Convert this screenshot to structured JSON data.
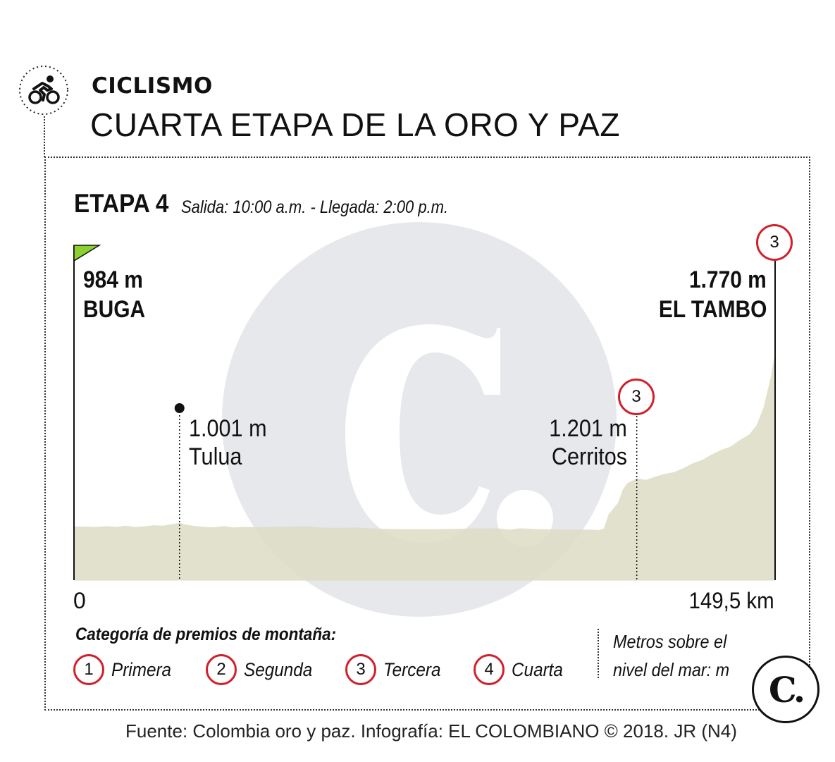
{
  "header": {
    "section": "CICLISMO",
    "headline": "CUARTA ETAPA DE LA ORO Y PAZ",
    "section_icon": "cyclist-icon"
  },
  "stage": {
    "title": "ETAPA 4",
    "times": "Salida: 10:00 a.m. - Llegada: 2:00 p.m."
  },
  "chart_data": {
    "type": "area",
    "xlabel": "",
    "ylabel": "",
    "x_range_km": [
      0,
      149.5
    ],
    "x_ticks": [
      "0",
      "149,5 km"
    ],
    "fill_color": "#dcdcc6",
    "profile": [
      {
        "x": 0,
        "y": 984
      },
      {
        "x": 3,
        "y": 983
      },
      {
        "x": 5,
        "y": 982
      },
      {
        "x": 7,
        "y": 986
      },
      {
        "x": 9,
        "y": 982
      },
      {
        "x": 11,
        "y": 988
      },
      {
        "x": 13,
        "y": 982
      },
      {
        "x": 15,
        "y": 985
      },
      {
        "x": 17,
        "y": 990
      },
      {
        "x": 19,
        "y": 988
      },
      {
        "x": 21,
        "y": 995
      },
      {
        "x": 22.5,
        "y": 1001
      },
      {
        "x": 24,
        "y": 992
      },
      {
        "x": 26,
        "y": 986
      },
      {
        "x": 28,
        "y": 982
      },
      {
        "x": 30,
        "y": 981
      },
      {
        "x": 32,
        "y": 986
      },
      {
        "x": 34,
        "y": 980
      },
      {
        "x": 36,
        "y": 982
      },
      {
        "x": 40,
        "y": 981
      },
      {
        "x": 45,
        "y": 983
      },
      {
        "x": 50,
        "y": 985
      },
      {
        "x": 52,
        "y": 980
      },
      {
        "x": 56,
        "y": 978
      },
      {
        "x": 60,
        "y": 980
      },
      {
        "x": 65,
        "y": 974
      },
      {
        "x": 70,
        "y": 972
      },
      {
        "x": 75,
        "y": 972
      },
      {
        "x": 80,
        "y": 973
      },
      {
        "x": 85,
        "y": 975
      },
      {
        "x": 90,
        "y": 976
      },
      {
        "x": 93,
        "y": 970
      },
      {
        "x": 95,
        "y": 976
      },
      {
        "x": 100,
        "y": 972
      },
      {
        "x": 105,
        "y": 970
      },
      {
        "x": 110,
        "y": 970
      },
      {
        "x": 112,
        "y": 968
      },
      {
        "x": 113,
        "y": 975
      },
      {
        "x": 114,
        "y": 1040
      },
      {
        "x": 116,
        "y": 1090
      },
      {
        "x": 117,
        "y": 1150
      },
      {
        "x": 118,
        "y": 1180
      },
      {
        "x": 120,
        "y": 1201
      },
      {
        "x": 122,
        "y": 1195
      },
      {
        "x": 124,
        "y": 1210
      },
      {
        "x": 126,
        "y": 1222
      },
      {
        "x": 128,
        "y": 1230
      },
      {
        "x": 130,
        "y": 1248
      },
      {
        "x": 132,
        "y": 1270
      },
      {
        "x": 134,
        "y": 1285
      },
      {
        "x": 136,
        "y": 1310
      },
      {
        "x": 138,
        "y": 1330
      },
      {
        "x": 140,
        "y": 1345
      },
      {
        "x": 142,
        "y": 1375
      },
      {
        "x": 144,
        "y": 1400
      },
      {
        "x": 145.5,
        "y": 1440
      },
      {
        "x": 147,
        "y": 1520
      },
      {
        "x": 148.5,
        "y": 1650
      },
      {
        "x": 149.5,
        "y": 1770
      }
    ],
    "points": [
      {
        "name": "BUGA",
        "elevation_label": "984 m",
        "x": 0,
        "y": 984,
        "marker": "start-flag"
      },
      {
        "name": "Tulua",
        "elevation_label": "1.001 m",
        "x": 22.5,
        "y": 1001,
        "marker": "dot"
      },
      {
        "name": "Cerritos",
        "elevation_label": "1.201 m",
        "x": 120,
        "y": 1201,
        "marker": "category",
        "category": "3"
      },
      {
        "name": "EL TAMBO",
        "elevation_label": "1.770 m",
        "x": 149.5,
        "y": 1770,
        "marker": "category",
        "category": "3"
      }
    ]
  },
  "legend": {
    "title": "Categoría de premios de montaña:",
    "items": [
      {
        "number": "1",
        "label": "Primera"
      },
      {
        "number": "2",
        "label": "Segunda"
      },
      {
        "number": "3",
        "label": "Tercera"
      },
      {
        "number": "4",
        "label": "Cuarta"
      }
    ],
    "units_note": "Metros sobre el nivel del mar: m",
    "category_color": "#d0202a"
  },
  "footer": {
    "source": "Fuente: Colombia oro y paz. Infografía: EL COLOMBIANO © 2018. JR (N4)",
    "logo_letter": "C."
  },
  "colors": {
    "watermark": "#e6e8ec",
    "flag": "#8cd12e",
    "category_red": "#d0202a"
  }
}
